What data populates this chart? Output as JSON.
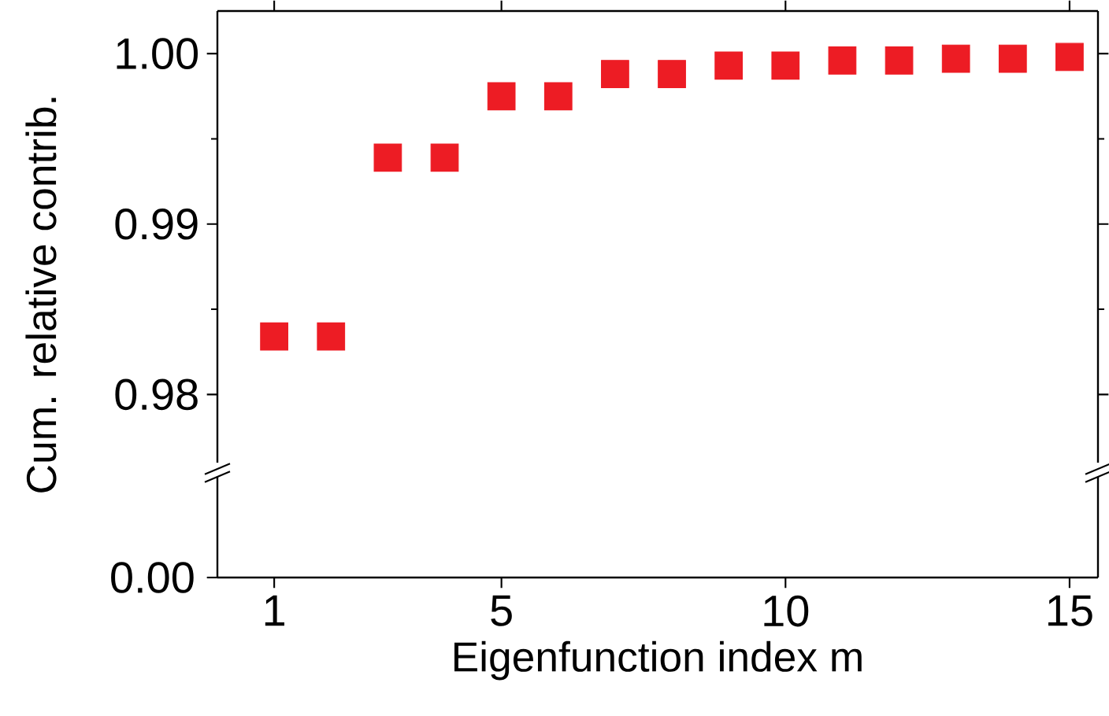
{
  "chart_data": {
    "type": "scatter",
    "xlabel": "Eigenfunction index m",
    "ylabel": "Cum. relative contrib.",
    "x": [
      1,
      2,
      3,
      4,
      5,
      6,
      7,
      8,
      9,
      10,
      11,
      12,
      13,
      14,
      15
    ],
    "series": [
      {
        "color": "#ed1c24",
        "values": [
          0.9834,
          0.9834,
          0.9939,
          0.9939,
          0.9975,
          0.9975,
          0.9988,
          0.9988,
          0.9993,
          0.9993,
          0.9996,
          0.9996,
          0.9997,
          0.9997,
          0.9998
        ]
      }
    ],
    "marker": "square",
    "xlim": [
      0,
      15.5
    ],
    "xticks": [
      1,
      5,
      10,
      15
    ],
    "ylim": [
      0.976,
      1.0025
    ],
    "yticks": [
      0.98,
      0.99,
      {
        "value": 1.0,
        "label": "1.00"
      }
    ],
    "annotations": [
      "0.00"
    ]
  }
}
